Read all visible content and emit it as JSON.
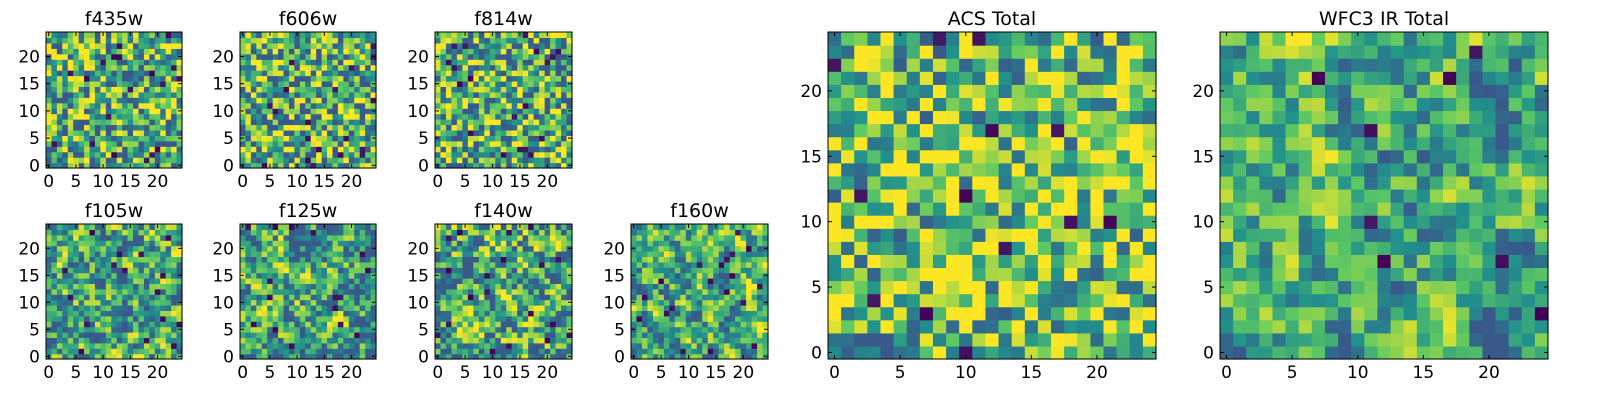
{
  "figure": {
    "colormap": [
      "#440154",
      "#3b528b",
      "#21918c",
      "#5ec962",
      "#fde725"
    ]
  },
  "chart_data": [
    {
      "type": "heatmap",
      "title": "f435w",
      "size": 25,
      "xticks": [
        "0",
        "5",
        "10",
        "15",
        "20"
      ],
      "yticks": [
        "0",
        "5",
        "10",
        "15",
        "20"
      ],
      "seed": 11,
      "contrast": 0.95,
      "smooth": 0.0,
      "base": 0.62,
      "dark_fraction": 0.03
    },
    {
      "type": "heatmap",
      "title": "f606w",
      "size": 25,
      "xticks": [
        "0",
        "5",
        "10",
        "15",
        "20"
      ],
      "yticks": [
        "0",
        "5",
        "10",
        "15",
        "20"
      ],
      "seed": 23,
      "contrast": 0.95,
      "smooth": 0.0,
      "base": 0.64,
      "dark_fraction": 0.03
    },
    {
      "type": "heatmap",
      "title": "f814w",
      "size": 25,
      "xticks": [
        "0",
        "5",
        "10",
        "15",
        "20"
      ],
      "yticks": [
        "0",
        "5",
        "10",
        "15",
        "20"
      ],
      "seed": 37,
      "contrast": 0.95,
      "smooth": 0.0,
      "base": 0.62,
      "dark_fraction": 0.03
    },
    {
      "type": "heatmap",
      "title": "f105w",
      "size": 25,
      "xticks": [
        "0",
        "5",
        "10",
        "15",
        "20"
      ],
      "yticks": [
        "0",
        "5",
        "10",
        "15",
        "20"
      ],
      "seed": 41,
      "contrast": 1.0,
      "smooth": 0.5,
      "base": 0.6,
      "dark_fraction": 0.025
    },
    {
      "type": "heatmap",
      "title": "f125w",
      "size": 25,
      "xticks": [
        "0",
        "5",
        "10",
        "15",
        "20"
      ],
      "yticks": [
        "0",
        "5",
        "10",
        "15",
        "20"
      ],
      "seed": 53,
      "contrast": 1.0,
      "smooth": 0.5,
      "base": 0.6,
      "dark_fraction": 0.025
    },
    {
      "type": "heatmap",
      "title": "f140w",
      "size": 25,
      "xticks": [
        "0",
        "5",
        "10",
        "15",
        "20"
      ],
      "yticks": [
        "0",
        "5",
        "10",
        "15",
        "20"
      ],
      "seed": 67,
      "contrast": 1.0,
      "smooth": 0.5,
      "base": 0.58,
      "dark_fraction": 0.03
    },
    {
      "type": "heatmap",
      "title": "f160w",
      "size": 25,
      "xticks": [
        "0",
        "5",
        "10",
        "15",
        "20"
      ],
      "yticks": [
        "0",
        "5",
        "10",
        "15",
        "20"
      ],
      "seed": 79,
      "contrast": 1.0,
      "smooth": 0.55,
      "base": 0.6,
      "dark_fraction": 0.03
    },
    {
      "type": "heatmap",
      "title": "ACS Total",
      "size": 25,
      "xticks": [
        "0",
        "5",
        "10",
        "15",
        "20"
      ],
      "yticks": [
        "0",
        "5",
        "10",
        "15",
        "20"
      ],
      "seed": 97,
      "contrast": 0.9,
      "smooth": 0.15,
      "base": 0.72,
      "dark_fraction": 0.02
    },
    {
      "type": "heatmap",
      "title": "WFC3 IR Total",
      "size": 25,
      "xticks": [
        "0",
        "5",
        "10",
        "15",
        "20"
      ],
      "yticks": [
        "0",
        "5",
        "10",
        "15",
        "20"
      ],
      "seed": 131,
      "contrast": 0.9,
      "smooth": 0.6,
      "base": 0.62,
      "dark_fraction": 0.012
    }
  ]
}
